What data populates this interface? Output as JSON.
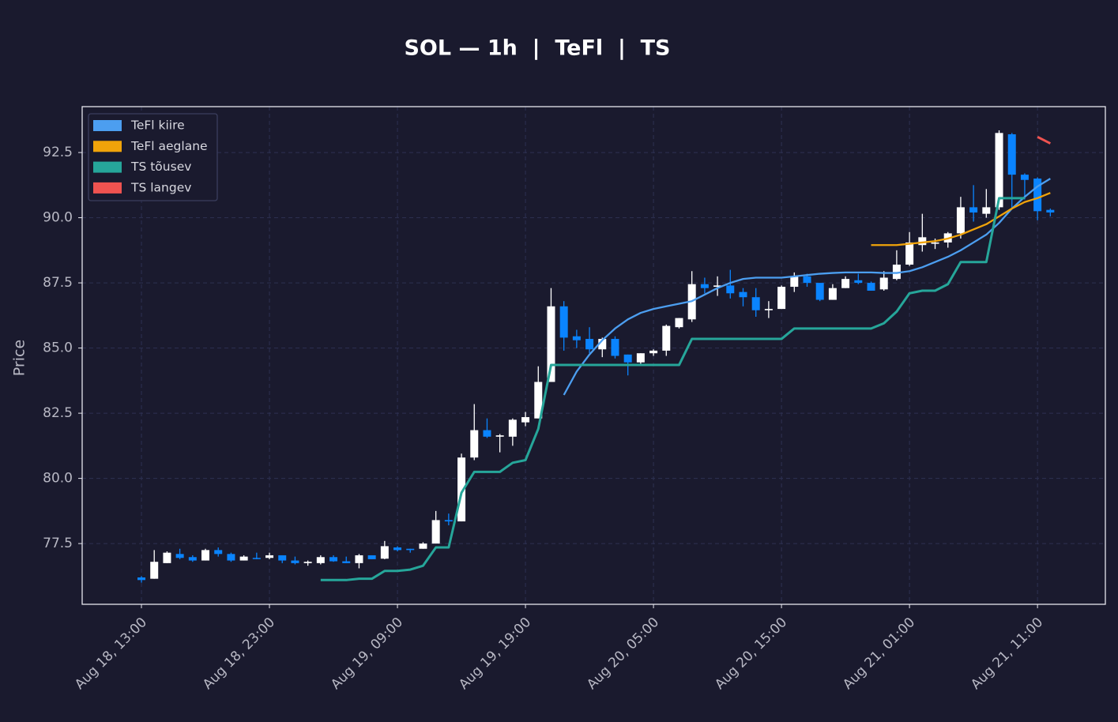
{
  "chart_data": {
    "type": "candlestick",
    "title": "SOL — 1h  |  TeFl  |  TS",
    "ylabel": "Price",
    "x": [
      "Aug 18, 13:00",
      "Aug 18, 14:00",
      "Aug 18, 15:00",
      "Aug 18, 16:00",
      "Aug 18, 17:00",
      "Aug 18, 18:00",
      "Aug 18, 19:00",
      "Aug 18, 20:00",
      "Aug 18, 21:00",
      "Aug 18, 22:00",
      "Aug 18, 23:00",
      "Aug 19, 00:00",
      "Aug 19, 01:00",
      "Aug 19, 02:00",
      "Aug 19, 03:00",
      "Aug 19, 04:00",
      "Aug 19, 05:00",
      "Aug 19, 06:00",
      "Aug 19, 07:00",
      "Aug 19, 08:00",
      "Aug 19, 09:00",
      "Aug 19, 10:00",
      "Aug 19, 11:00",
      "Aug 19, 12:00",
      "Aug 19, 13:00",
      "Aug 19, 14:00",
      "Aug 19, 15:00",
      "Aug 19, 16:00",
      "Aug 19, 17:00",
      "Aug 19, 18:00",
      "Aug 19, 19:00",
      "Aug 19, 20:00",
      "Aug 19, 21:00",
      "Aug 19, 22:00",
      "Aug 19, 23:00",
      "Aug 20, 00:00",
      "Aug 20, 01:00",
      "Aug 20, 02:00",
      "Aug 20, 03:00",
      "Aug 20, 04:00",
      "Aug 20, 05:00",
      "Aug 20, 06:00",
      "Aug 20, 07:00",
      "Aug 20, 08:00",
      "Aug 20, 09:00",
      "Aug 20, 10:00",
      "Aug 20, 11:00",
      "Aug 20, 12:00",
      "Aug 20, 13:00",
      "Aug 20, 14:00",
      "Aug 20, 15:00",
      "Aug 20, 16:00",
      "Aug 20, 17:00",
      "Aug 20, 18:00",
      "Aug 20, 19:00",
      "Aug 20, 20:00",
      "Aug 20, 21:00",
      "Aug 20, 22:00",
      "Aug 20, 23:00",
      "Aug 21, 00:00",
      "Aug 21, 01:00",
      "Aug 21, 02:00",
      "Aug 21, 03:00",
      "Aug 21, 04:00",
      "Aug 21, 05:00",
      "Aug 21, 06:00",
      "Aug 21, 07:00",
      "Aug 21, 08:00",
      "Aug 21, 09:00",
      "Aug 21, 10:00",
      "Aug 21, 11:00",
      "Aug 21, 12:00"
    ],
    "open": [
      76.2,
      76.15,
      76.75,
      77.1,
      76.98,
      76.85,
      77.25,
      77.1,
      76.85,
      76.95,
      76.95,
      77.05,
      76.85,
      76.75,
      76.75,
      76.98,
      76.82,
      76.75,
      77.05,
      76.92,
      77.35,
      77.3,
      77.3,
      77.5,
      78.4,
      78.35,
      80.8,
      81.85,
      81.6,
      81.6,
      82.15,
      82.3,
      83.7,
      86.6,
      85.45,
      85.35,
      84.95,
      85.35,
      84.75,
      84.45,
      84.8,
      84.9,
      85.8,
      86.1,
      87.45,
      87.35,
      87.4,
      87.15,
      86.95,
      86.45,
      86.5,
      87.35,
      87.75,
      87.5,
      86.85,
      87.3,
      87.6,
      87.5,
      87.25,
      87.65,
      88.2,
      88.95,
      89.0,
      89.05,
      89.4,
      90.4,
      90.15,
      90.4,
      93.2,
      91.65,
      91.5,
      90.3
    ],
    "high": [
      76.25,
      77.25,
      77.2,
      77.3,
      77.05,
      77.3,
      77.35,
      77.15,
      77.05,
      77.15,
      77.15,
      77.05,
      77.0,
      76.85,
      77.05,
      77.05,
      77.0,
      77.1,
      77.05,
      77.6,
      77.4,
      77.3,
      77.55,
      78.75,
      78.65,
      80.95,
      82.85,
      82.3,
      81.7,
      82.3,
      82.55,
      84.3,
      87.3,
      86.8,
      85.7,
      85.8,
      85.4,
      85.45,
      84.75,
      84.8,
      84.95,
      85.9,
      86.15,
      87.95,
      87.7,
      87.75,
      88.0,
      87.3,
      87.3,
      86.8,
      87.4,
      87.9,
      87.85,
      87.5,
      87.45,
      87.75,
      87.85,
      87.55,
      87.95,
      88.75,
      89.45,
      90.15,
      89.2,
      89.45,
      90.8,
      91.25,
      91.1,
      93.35,
      93.25,
      91.7,
      91.55,
      90.35
    ],
    "low": [
      76.0,
      76.15,
      76.75,
      76.9,
      76.8,
      76.85,
      77.0,
      76.8,
      76.85,
      76.9,
      76.9,
      76.75,
      76.7,
      76.65,
      76.7,
      76.8,
      76.75,
      76.55,
      76.9,
      76.9,
      77.2,
      77.15,
      77.3,
      77.5,
      78.2,
      78.35,
      80.7,
      81.55,
      81.0,
      81.25,
      82.0,
      82.3,
      83.7,
      84.9,
      85.0,
      84.8,
      84.65,
      84.6,
      83.95,
      84.4,
      84.7,
      84.7,
      85.75,
      86.0,
      87.1,
      87.0,
      86.9,
      86.6,
      86.2,
      86.15,
      86.5,
      87.15,
      87.35,
      86.8,
      86.85,
      87.3,
      87.45,
      87.2,
      87.2,
      87.6,
      88.15,
      88.7,
      88.8,
      88.85,
      89.2,
      89.85,
      90.0,
      90.3,
      90.35,
      90.7,
      89.9,
      90.05
    ],
    "close": [
      76.1,
      76.8,
      77.15,
      76.95,
      76.85,
      77.25,
      77.1,
      76.85,
      77.0,
      76.92,
      77.05,
      76.85,
      76.75,
      76.8,
      76.98,
      76.82,
      76.75,
      77.05,
      76.9,
      77.4,
      77.25,
      77.25,
      77.5,
      78.4,
      78.35,
      80.8,
      81.85,
      81.6,
      81.65,
      82.25,
      82.35,
      83.7,
      86.6,
      85.4,
      85.3,
      84.95,
      85.35,
      84.7,
      84.45,
      84.8,
      84.9,
      85.85,
      86.15,
      87.45,
      87.3,
      87.4,
      87.1,
      86.95,
      86.45,
      86.5,
      87.35,
      87.75,
      87.5,
      86.85,
      87.3,
      87.65,
      87.5,
      87.2,
      87.7,
      88.2,
      89.05,
      89.25,
      89.05,
      89.4,
      90.4,
      90.2,
      90.4,
      93.25,
      91.65,
      91.45,
      90.25,
      90.2
    ],
    "up_color": "#ffffff",
    "down_color": "#0a84ff",
    "series": [
      {
        "name": "TeFl kiire",
        "color": "#4c9ef0",
        "values": [
          null,
          null,
          null,
          null,
          null,
          null,
          null,
          null,
          null,
          null,
          null,
          null,
          null,
          null,
          null,
          null,
          null,
          null,
          null,
          null,
          null,
          null,
          null,
          null,
          null,
          null,
          null,
          null,
          null,
          null,
          null,
          null,
          null,
          83.2,
          84.1,
          84.75,
          85.3,
          85.75,
          86.1,
          86.35,
          86.5,
          86.6,
          86.7,
          86.8,
          87.05,
          87.3,
          87.5,
          87.65,
          87.7,
          87.7,
          87.7,
          87.75,
          87.8,
          87.85,
          87.88,
          87.9,
          87.9,
          87.9,
          87.88,
          87.88,
          87.95,
          88.1,
          88.3,
          88.5,
          88.75,
          89.05,
          89.35,
          89.8,
          90.35,
          90.8,
          91.2,
          91.5
        ]
      },
      {
        "name": "TeFl aeglane",
        "color": "#f0a30a",
        "values": [
          null,
          null,
          null,
          null,
          null,
          null,
          null,
          null,
          null,
          null,
          null,
          null,
          null,
          null,
          null,
          null,
          null,
          null,
          null,
          null,
          null,
          null,
          null,
          null,
          null,
          null,
          null,
          null,
          null,
          null,
          null,
          null,
          null,
          null,
          null,
          null,
          null,
          null,
          null,
          null,
          null,
          null,
          null,
          null,
          null,
          null,
          null,
          null,
          null,
          null,
          null,
          null,
          null,
          null,
          null,
          null,
          null,
          88.95,
          88.95,
          88.95,
          89.0,
          89.05,
          89.1,
          89.2,
          89.35,
          89.55,
          89.75,
          90.05,
          90.35,
          90.6,
          90.75,
          90.95
        ]
      },
      {
        "name": "TS tõusev",
        "color": "#26a69a",
        "values": [
          null,
          null,
          null,
          null,
          null,
          null,
          null,
          null,
          null,
          null,
          null,
          null,
          null,
          null,
          76.1,
          76.1,
          76.1,
          76.15,
          76.15,
          76.45,
          76.45,
          76.5,
          76.65,
          77.35,
          77.35,
          79.45,
          80.25,
          80.25,
          80.25,
          80.6,
          80.7,
          81.9,
          84.35,
          84.35,
          84.35,
          84.35,
          84.35,
          84.35,
          84.35,
          84.35,
          84.35,
          84.35,
          84.35,
          85.35,
          85.35,
          85.35,
          85.35,
          85.35,
          85.35,
          85.35,
          85.35,
          85.75,
          85.75,
          85.75,
          85.75,
          85.75,
          85.75,
          85.75,
          85.95,
          86.4,
          87.1,
          87.2,
          87.2,
          87.45,
          88.3,
          88.3,
          88.3,
          90.75,
          90.75,
          90.75,
          null,
          null
        ]
      },
      {
        "name": "TS langev",
        "color": "#ef5350",
        "values": [
          null,
          null,
          null,
          null,
          null,
          null,
          null,
          null,
          null,
          null,
          null,
          null,
          null,
          null,
          null,
          null,
          null,
          null,
          null,
          null,
          null,
          null,
          null,
          null,
          null,
          null,
          null,
          null,
          null,
          null,
          null,
          null,
          null,
          null,
          null,
          null,
          null,
          null,
          null,
          null,
          null,
          null,
          null,
          null,
          null,
          null,
          null,
          null,
          null,
          null,
          null,
          null,
          null,
          null,
          null,
          null,
          null,
          null,
          null,
          null,
          null,
          null,
          null,
          null,
          null,
          null,
          null,
          null,
          null,
          null,
          93.1,
          92.85
        ]
      }
    ],
    "xlim": [
      -4.63,
      75.3
    ],
    "xticks": [
      {
        "value": 0,
        "label": "Aug 18, 13:00"
      },
      {
        "value": 10,
        "label": "Aug 18, 23:00"
      },
      {
        "value": 20,
        "label": "Aug 19, 09:00"
      },
      {
        "value": 30,
        "label": "Aug 19, 19:00"
      },
      {
        "value": 40,
        "label": "Aug 20, 05:00"
      },
      {
        "value": 50,
        "label": "Aug 20, 15:00"
      },
      {
        "value": 60,
        "label": "Aug 21, 01:00"
      },
      {
        "value": 70,
        "label": "Aug 21, 11:00"
      }
    ],
    "ylim": [
      75.17,
      94.26
    ],
    "yticks": [
      77.5,
      {
        "value": 80,
        "label": "80.0"
      },
      82.5,
      {
        "value": 85,
        "label": "85.0"
      },
      87.5,
      {
        "value": 90,
        "label": "90.0"
      },
      92.5
    ],
    "grid": true,
    "legend": "upper left"
  }
}
